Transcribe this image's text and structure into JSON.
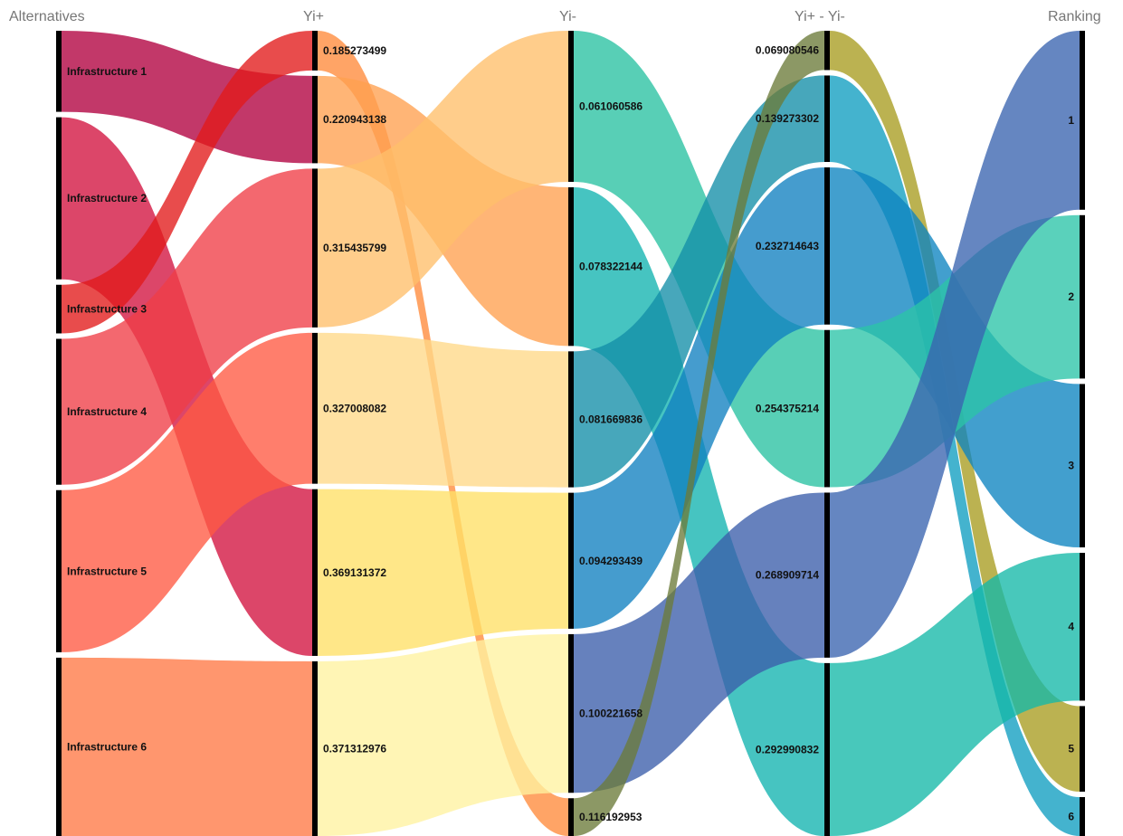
{
  "chart_data": {
    "type": "sankey",
    "axes": [
      "Alternatives",
      "Yi+",
      "Yi-",
      "Yi+ - Yi-",
      "Ranking"
    ],
    "columns": [
      {
        "name": "Alternatives",
        "nodes": [
          {
            "label": "Infrastructure 1",
            "color": "#b1003f",
            "value": 0.5
          },
          {
            "label": "Infrastructure 2",
            "color": "#d2123f",
            "value": 1
          },
          {
            "label": "Infrastructure 3",
            "color": "#e21a1a",
            "value": 0.3
          },
          {
            "label": "Infrastructure 4",
            "color": "#f03e46",
            "value": 0.9
          },
          {
            "label": "Infrastructure 5",
            "color": "#ff5a43",
            "value": 1
          },
          {
            "label": "Infrastructure 6",
            "color": "#ff7845",
            "value": 1.1
          }
        ]
      },
      {
        "name": "Yi+",
        "nodes": [
          {
            "label": "0.185273499",
            "color": "#ff8a3b",
            "value": 0.25
          },
          {
            "label": "0.220943138",
            "color": "#ffa050",
            "value": 0.55
          },
          {
            "label": "0.315435799",
            "color": "#ffbf6a",
            "value": 1
          },
          {
            "label": "0.327008082",
            "color": "#ffd888",
            "value": 0.95
          },
          {
            "label": "0.369131372",
            "color": "#ffe066",
            "value": 1.05
          },
          {
            "label": "0.371312976",
            "color": "#fff2a0",
            "value": 1.1
          }
        ]
      },
      {
        "name": "Yi-",
        "nodes": [
          {
            "label": "0.061060586",
            "color": "#29c2a2",
            "value": 1
          },
          {
            "label": "0.078322144",
            "color": "#12b3b0",
            "value": 1.05
          },
          {
            "label": "0.081669836",
            "color": "#138ea8",
            "value": 0.9
          },
          {
            "label": "0.094293439",
            "color": "#1180c0",
            "value": 0.9
          },
          {
            "label": "0.100221658",
            "color": "#3b5eaa",
            "value": 1.05
          },
          {
            "label": "0.116192953",
            "color": "#6b7b3a",
            "value": 0.25
          }
        ]
      },
      {
        "name": "Yi+ - Yi-",
        "nodes": [
          {
            "label": "0.069080546",
            "color": "#a89c20",
            "value": 0.25
          },
          {
            "label": "0.139273302",
            "color": "#109ec0",
            "value": 0.55
          },
          {
            "label": "0.232714643",
            "color": "#0d84c0",
            "value": 1
          },
          {
            "label": "0.254375214",
            "color": "#2cc4a8",
            "value": 1
          },
          {
            "label": "0.268909714",
            "color": "#3a64b0",
            "value": 1.05
          },
          {
            "label": "0.292990832",
            "color": "#14b8a8",
            "value": 1.1
          }
        ]
      },
      {
        "name": "Ranking",
        "nodes": [
          {
            "label": "1",
            "color": "#5ed39c",
            "value": 1.15
          },
          {
            "label": "2",
            "color": "#15b062",
            "value": 1.05
          },
          {
            "label": "3",
            "color": "#8fe08c",
            "value": 1.05
          },
          {
            "label": "4",
            "color": "#c5ef8e",
            "value": 0.95
          },
          {
            "label": "5",
            "color": "#e6f57e",
            "value": 0.55
          },
          {
            "label": "6",
            "color": "#f3f8b8",
            "value": 0.25
          }
        ]
      }
    ],
    "links": [
      {
        "stage": 0,
        "from": 0,
        "to": 1
      },
      {
        "stage": 0,
        "from": 1,
        "to": 4
      },
      {
        "stage": 0,
        "from": 2,
        "to": 0
      },
      {
        "stage": 0,
        "from": 3,
        "to": 2
      },
      {
        "stage": 0,
        "from": 4,
        "to": 3
      },
      {
        "stage": 0,
        "from": 5,
        "to": 5
      },
      {
        "stage": 1,
        "from": 0,
        "to": 5
      },
      {
        "stage": 1,
        "from": 1,
        "to": 1
      },
      {
        "stage": 1,
        "from": 2,
        "to": 0
      },
      {
        "stage": 1,
        "from": 3,
        "to": 2
      },
      {
        "stage": 1,
        "from": 4,
        "to": 3
      },
      {
        "stage": 1,
        "from": 5,
        "to": 4
      },
      {
        "stage": 2,
        "from": 0,
        "to": 3
      },
      {
        "stage": 2,
        "from": 1,
        "to": 5
      },
      {
        "stage": 2,
        "from": 2,
        "to": 1
      },
      {
        "stage": 2,
        "from": 3,
        "to": 2
      },
      {
        "stage": 2,
        "from": 4,
        "to": 4
      },
      {
        "stage": 2,
        "from": 5,
        "to": 0
      },
      {
        "stage": 3,
        "from": 0,
        "to": 4
      },
      {
        "stage": 3,
        "from": 1,
        "to": 5
      },
      {
        "stage": 3,
        "from": 2,
        "to": 2
      },
      {
        "stage": 3,
        "from": 3,
        "to": 1
      },
      {
        "stage": 3,
        "from": 4,
        "to": 0
      },
      {
        "stage": 3,
        "from": 5,
        "to": 3
      }
    ]
  }
}
